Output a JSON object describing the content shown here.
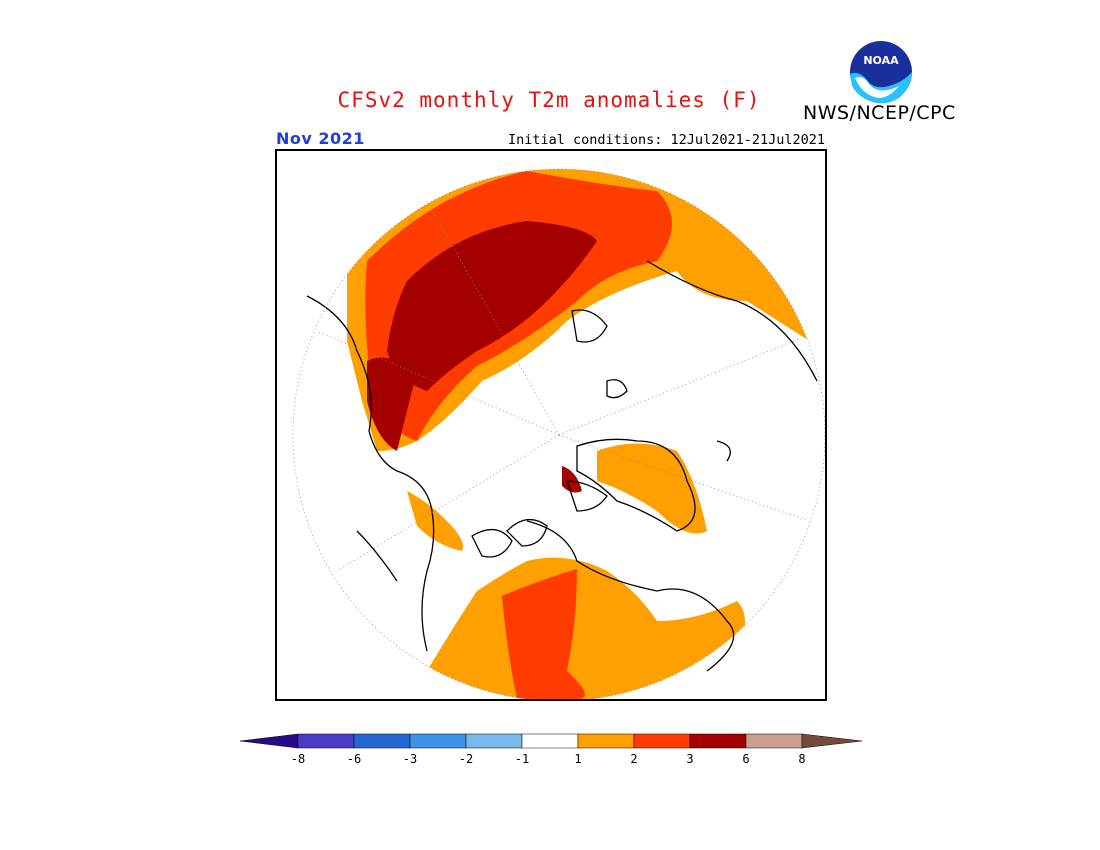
{
  "header": {
    "title": "CFSv2 monthly T2m anomalies (F)",
    "agency": "NWS/NCEP/CPC",
    "logo_text": "NOAA",
    "month": "Nov 2021",
    "initial_conditions": "Initial conditions: 12Jul2021-21Jul2021"
  },
  "map": {
    "projection": "north polar stereographic",
    "units": "F",
    "colors": {
      "lt_neg8": "#2a0a8a",
      "neg8_neg6": "#4a3cc8",
      "neg6_neg3": "#2466d2",
      "neg3_neg2": "#3d94e6",
      "neg2_neg1": "#7ab9ec",
      "neg1_1": "#ffffff",
      "1_2": "#ff9f00",
      "2_3": "#ff3c00",
      "3_6": "#a50000",
      "6_8": "#c9a090",
      "gt_8": "#744a3e"
    }
  },
  "colorbar": {
    "ticks": [
      "-8",
      "-6",
      "-3",
      "-2",
      "-1",
      "1",
      "2",
      "3",
      "6",
      "8"
    ],
    "colors": [
      "#2a0a8a",
      "#4a3cc8",
      "#2466d2",
      "#3d94e6",
      "#7ab9ec",
      "#ffffff",
      "#ff9f00",
      "#ff3c00",
      "#a50000",
      "#c9a090",
      "#744a3e"
    ]
  }
}
